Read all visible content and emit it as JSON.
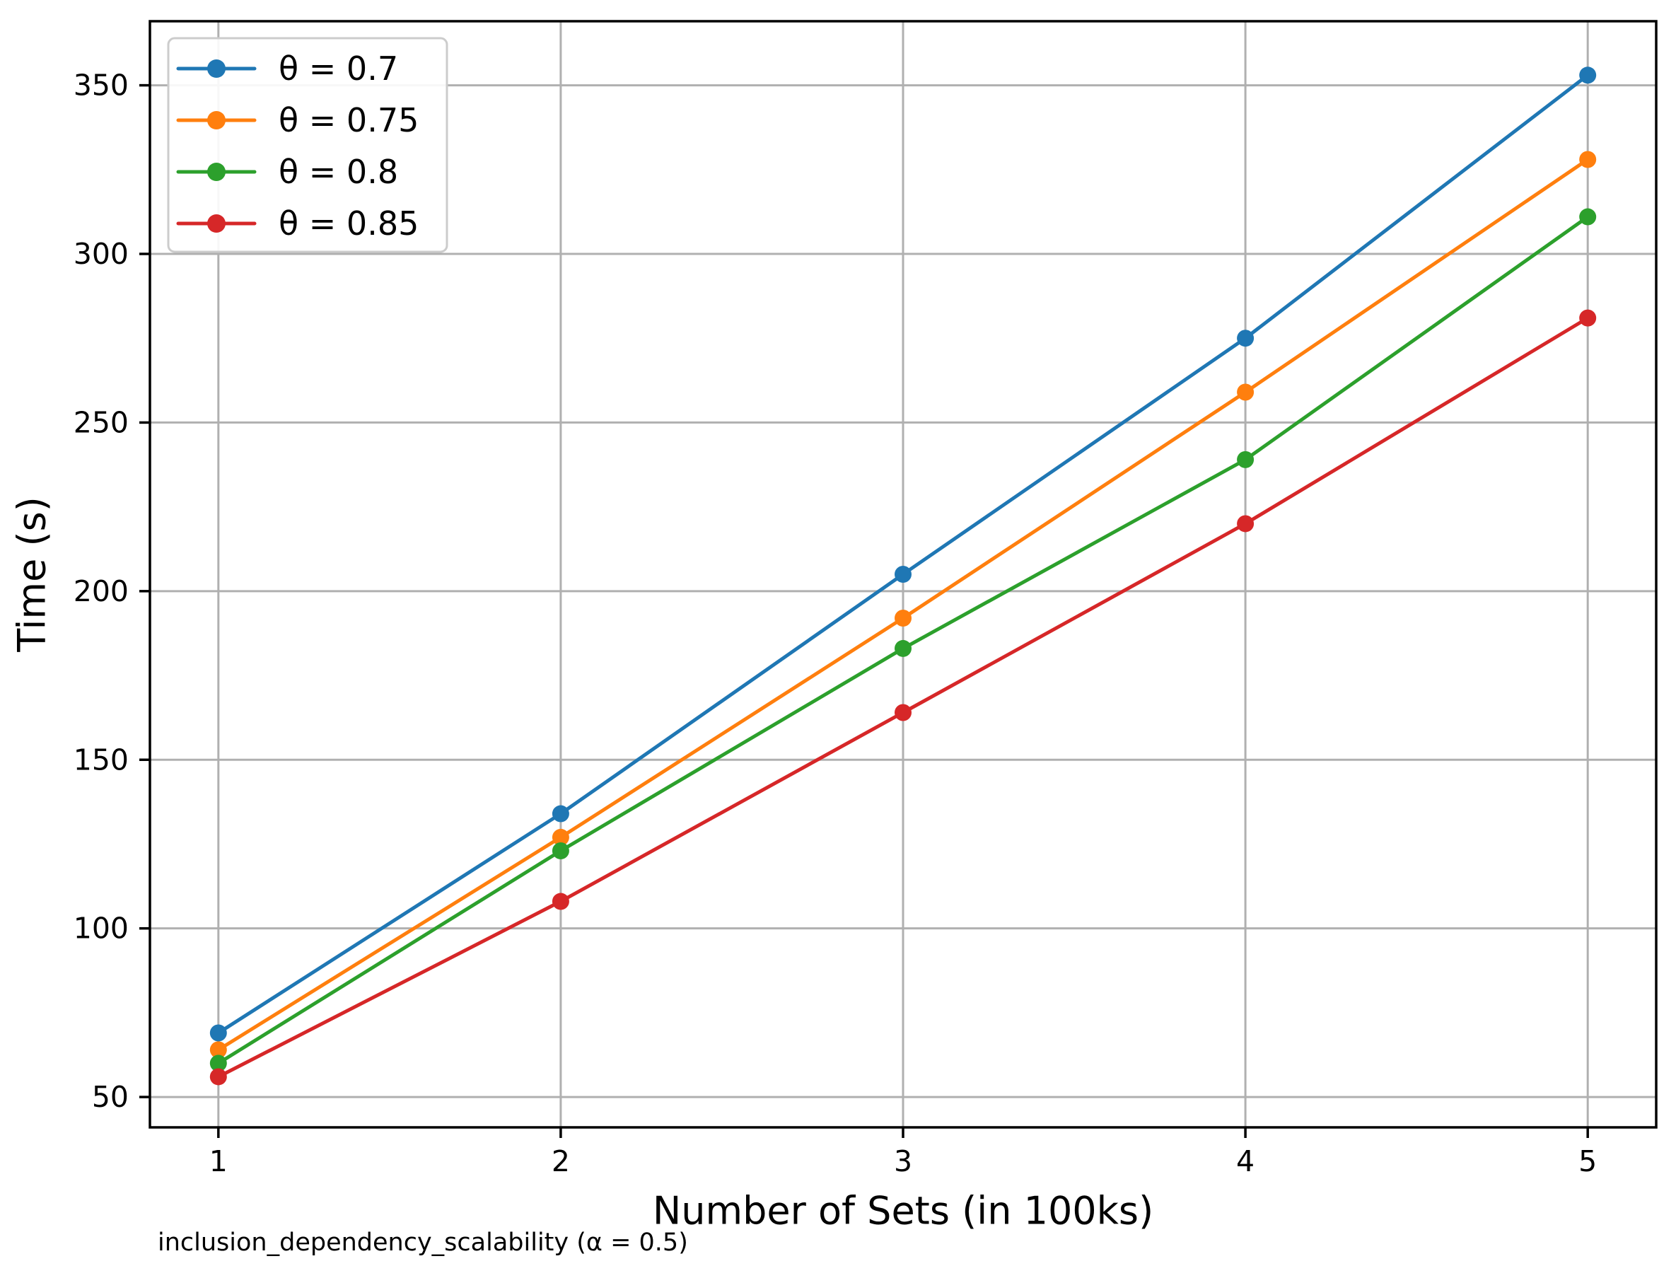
{
  "figure": {
    "background": "#ffffff"
  },
  "chart_data": {
    "type": "line",
    "caption": "inclusion_dependency_scalability (α = 0.5)",
    "xlabel": "Number of Sets (in 100ks)",
    "ylabel": "Time (s)",
    "x": [
      1,
      2,
      3,
      4,
      5
    ],
    "xtick_labels": [
      "1",
      "2",
      "3",
      "4",
      "5"
    ],
    "yticks": [
      50,
      100,
      150,
      200,
      250,
      300,
      350
    ],
    "xlim": [
      0.8,
      5.2
    ],
    "ylim": [
      41,
      369
    ],
    "grid": true,
    "grid_color": "#b0b0b0",
    "axis_color": "#000000",
    "legend_position": "upper left",
    "series": [
      {
        "name": "θ = 0.7",
        "color": "#1f77b4",
        "values": [
          69,
          134,
          205,
          275,
          353
        ]
      },
      {
        "name": "θ = 0.75",
        "color": "#ff7f0e",
        "values": [
          64,
          127,
          192,
          259,
          328
        ]
      },
      {
        "name": "θ = 0.8",
        "color": "#2ca02c",
        "values": [
          60,
          123,
          183,
          239,
          311
        ]
      },
      {
        "name": "θ = 0.85",
        "color": "#d62728",
        "values": [
          56,
          108,
          164,
          220,
          281
        ]
      }
    ]
  }
}
